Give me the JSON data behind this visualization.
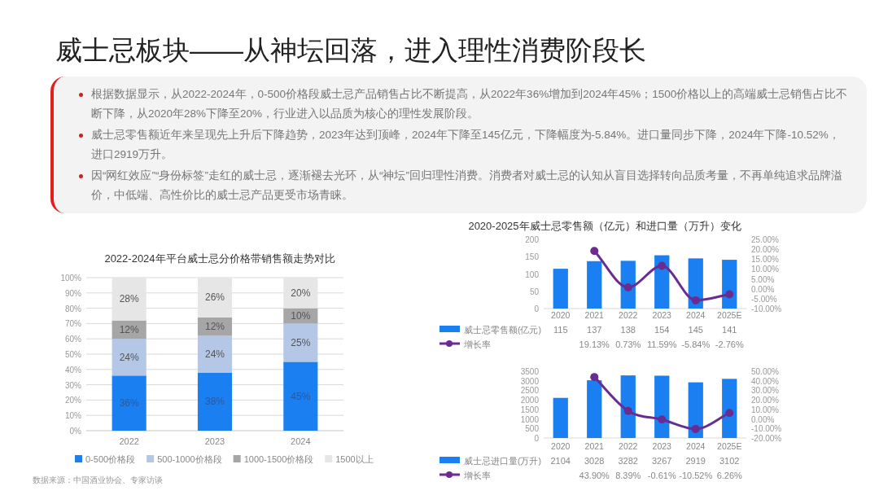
{
  "chart_data": [
    {
      "type": "other",
      "title": "威士忌板块——从神坛回落，进入理性消费阶段长",
      "annotations": [
        "根据数据显示，从2022-2024年，0-500价格段威士忌产品销售占比不断提高，从2022年36%增加到2024年45%；1500价格以上的高端威士忌销售占比不断下降，从2020年28%下降至20%，行业进入以品质为核心的理性发展阶段。",
        "威士忌零售额近年来呈现先上升后下降趋势，2023年达到顶峰，2024年下降至145亿元，下降幅度为-5.84%。进口量同步下降，2024年下降-10.52%，进口2919万升。",
        "因“网红效应”“身份标签”走红的威士忌，逐渐褪去光环，从“神坛”回归理性消费。消费者对威士忌的认知从盲目选择转向品质考量，不再单纯追求品牌溢价，中低端、高性价比的威士忌产品更受市场青睐。"
      ]
    },
    {
      "type": "bar",
      "stacked": true,
      "title": "2022-2024年平台威士忌分价格带销售额走势对比",
      "categories": [
        "2022",
        "2023",
        "2024"
      ],
      "series": [
        {
          "name": "0-500价格段",
          "color": "#1a7ff0",
          "values": [
            36,
            38,
            45
          ],
          "value_labels": [
            "36%",
            "38%",
            "45%"
          ]
        },
        {
          "name": "500-1000价格段",
          "color": "#b4c7e7",
          "values": [
            24,
            24,
            25
          ],
          "value_labels": [
            "24%",
            "24%",
            "25%"
          ]
        },
        {
          "name": "1000-1500价格段",
          "color": "#a6a6a6",
          "values": [
            12,
            12,
            10
          ],
          "value_labels": [
            "12%",
            "12%",
            "10%"
          ]
        },
        {
          "name": "1500以上",
          "color": "#e6e6e6",
          "values": [
            28,
            26,
            20
          ],
          "value_labels": [
            "28%",
            "26%",
            "20%"
          ]
        }
      ],
      "ylim": [
        0,
        100
      ],
      "yticks": [
        {
          "value": 0,
          "label": "0%"
        },
        {
          "value": 10,
          "label": "10%"
        },
        {
          "value": 20,
          "label": "20%"
        },
        {
          "value": 30,
          "label": "30%"
        },
        {
          "value": 40,
          "label": "40%"
        },
        {
          "value": 50,
          "label": "50%"
        },
        {
          "value": 60,
          "label": "60%"
        },
        {
          "value": 70,
          "label": "70%"
        },
        {
          "value": 80,
          "label": "80%"
        },
        {
          "value": 90,
          "label": "90%"
        },
        {
          "value": 100,
          "label": "100%"
        }
      ],
      "grid": "y",
      "legend": "bottom",
      "annotations": [
        "数据来源：中国酒业协会、专家访谈"
      ]
    },
    {
      "type": "bar",
      "title": "2020-2025年威士忌零售额（亿元）和进口量（万升）变化",
      "categories": [
        "2020",
        "2021",
        "2022",
        "2023",
        "2024",
        "2025E"
      ],
      "series": [
        {
          "name": "威士忌零售额(亿元)",
          "color": "#1a7ff0",
          "values": [
            115,
            137,
            138,
            154,
            145,
            141
          ],
          "value_labels": [
            "115",
            "137",
            "138",
            "154",
            "145",
            "141"
          ]
        },
        {
          "name": "增长率",
          "type": "line",
          "axis": "y2",
          "color": "#6a2c91",
          "marker": "circle",
          "values": [
            null,
            19.13,
            0.73,
            11.59,
            -5.84,
            -2.76
          ],
          "value_labels": [
            null,
            "19.13%",
            "0.73%",
            "11.59%",
            "-5.84%",
            "-2.76%"
          ]
        }
      ],
      "ylim": [
        0,
        200
      ],
      "yticks": [
        0,
        50,
        100,
        150,
        200
      ],
      "y2lim": [
        -10,
        25
      ],
      "y2ticks": [
        {
          "value": -10,
          "label": "-10.00%"
        },
        {
          "value": -5,
          "label": "-5.00%"
        },
        {
          "value": 0,
          "label": "0.00%"
        },
        {
          "value": 5,
          "label": "5.00%"
        },
        {
          "value": 10,
          "label": "10.00%"
        },
        {
          "value": 15,
          "label": "15.00%"
        },
        {
          "value": 20,
          "label": "20.00%"
        },
        {
          "value": 25,
          "label": "25.00%"
        }
      ],
      "legend": "bottom"
    },
    {
      "type": "bar",
      "categories": [
        "2020",
        "2021",
        "2022",
        "2023",
        "2024",
        "2025E"
      ],
      "series": [
        {
          "name": "威士忌进口量(万升)",
          "color": "#1a7ff0",
          "values": [
            2104,
            3028,
            3282,
            3267,
            2919,
            3102
          ],
          "value_labels": [
            "2104",
            "3028",
            "3282",
            "3267",
            "2919",
            "3102"
          ]
        },
        {
          "name": "增长率",
          "type": "line",
          "axis": "y2",
          "color": "#6a2c91",
          "marker": "circle",
          "values": [
            null,
            43.9,
            8.39,
            -0.61,
            -10.52,
            6.26
          ],
          "value_labels": [
            null,
            "43.90%",
            "8.39%",
            "-0.61%",
            "-10.52%",
            "6.26%"
          ]
        }
      ],
      "ylim": [
        0,
        3500
      ],
      "yticks": [
        0,
        500,
        1000,
        1500,
        2000,
        2500,
        3000,
        3500
      ],
      "y2lim": [
        -20,
        50
      ],
      "y2ticks": [
        {
          "value": -20,
          "label": "-20.00%"
        },
        {
          "value": -10,
          "label": "-10.00%"
        },
        {
          "value": 0,
          "label": "0.00%"
        },
        {
          "value": 10,
          "label": "10.00%"
        },
        {
          "value": 20,
          "label": "20.00%"
        },
        {
          "value": 30,
          "label": "30.00%"
        },
        {
          "value": 40,
          "label": "40.00%"
        },
        {
          "value": 50,
          "label": "50.00%"
        }
      ],
      "legend": "bottom"
    }
  ]
}
